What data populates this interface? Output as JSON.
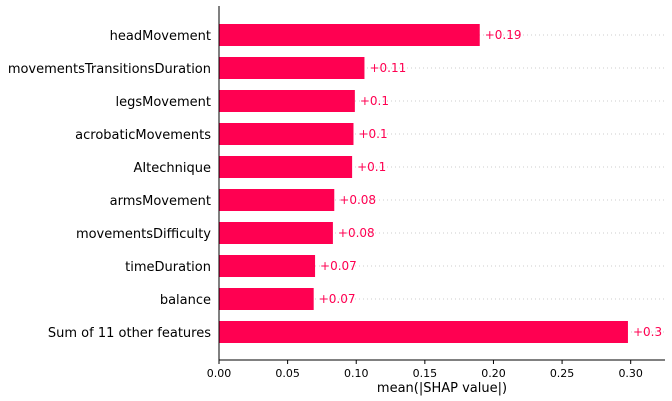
{
  "chart_data": {
    "type": "bar",
    "orientation": "horizontal",
    "title": "",
    "xlabel": "mean(|SHAP value|)",
    "ylabel": "",
    "xlim": [
      0,
      0.325
    ],
    "xticks": [
      0.0,
      0.05,
      0.1,
      0.15,
      0.2,
      0.25,
      0.3
    ],
    "xtick_labels": [
      "0.00",
      "0.05",
      "0.10",
      "0.15",
      "0.20",
      "0.25",
      "0.30"
    ],
    "categories": [
      "headMovement",
      "movementsTransitionsDuration",
      "legsMovement",
      "acrobaticMovements",
      "AItechnique",
      "armsMovement",
      "movementsDifficulty",
      "timeDuration",
      "balance",
      "Sum of 11 other features"
    ],
    "values": [
      0.19,
      0.106,
      0.099,
      0.098,
      0.097,
      0.084,
      0.083,
      0.07,
      0.069,
      0.298
    ],
    "data_labels": [
      "+0.19",
      "+0.11",
      "+0.1",
      "+0.1",
      "+0.1",
      "+0.08",
      "+0.08",
      "+0.07",
      "+0.07",
      "+0.3"
    ],
    "grid": "horizontal dotted",
    "colors": {
      "bar": "#ff0051",
      "label": "#ff0051",
      "axis": "#000000",
      "grid": "#cccccc"
    }
  }
}
